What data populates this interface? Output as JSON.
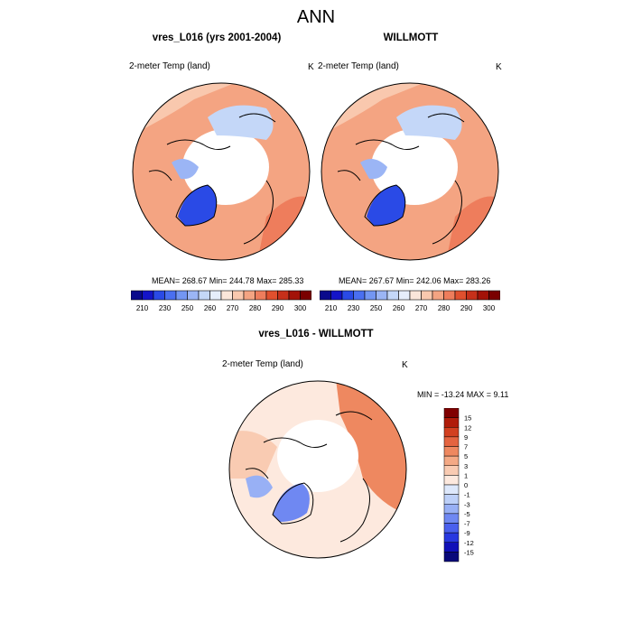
{
  "title": "ANN",
  "colors": {
    "abs_palette": [
      "#0a0a8c",
      "#1414c8",
      "#2a4ae6",
      "#4a6ff0",
      "#7396f2",
      "#9bb5f5",
      "#c4d7f8",
      "#e6eefb",
      "#fbe6da",
      "#f9c8ae",
      "#f4a482",
      "#ee7d5c",
      "#e0502e",
      "#c6301a",
      "#a31208",
      "#7a0000"
    ],
    "diff_palette": [
      "#08087a",
      "#1010b8",
      "#2838e0",
      "#4a60ee",
      "#6f88f2",
      "#98b0f5",
      "#bdd0f8",
      "#dde8fb",
      "#fde9de",
      "#f9cbb2",
      "#f4a985",
      "#ee8860",
      "#e46440",
      "#d24020",
      "#b01c0a",
      "#800000"
    ],
    "land_line": "#000000"
  },
  "panels": {
    "model": {
      "heading": "vres_L016 (yrs 2001-2004)",
      "variable": "2-meter Temp (land)",
      "unit": "K",
      "stats": "MEAN= 268.67  Min= 244.78  Max= 285.33",
      "map_name": "model-temperature-map"
    },
    "obs": {
      "heading": "WILLMOTT",
      "variable": "2-meter Temp (land)",
      "unit": "K",
      "stats": "MEAN= 267.67  Min= 242.06  Max= 283.26",
      "map_name": "obs-temperature-map"
    },
    "diff": {
      "heading": "vres_L016 - WILLMOTT",
      "variable": "2-meter Temp (land)",
      "unit": "K",
      "stats": "MIN = -13.24 MAX =   9.11",
      "map_name": "difference-map"
    }
  },
  "abs_colorbar": {
    "labels": [
      "210",
      "230",
      "250",
      "260",
      "270",
      "280",
      "290",
      "300"
    ]
  },
  "diff_colorbar": {
    "labels": [
      "15",
      "12",
      "9",
      "7",
      "5",
      "3",
      "1",
      "0",
      "-1",
      "-3",
      "-5",
      "-7",
      "-9",
      "-12",
      "-15"
    ]
  }
}
